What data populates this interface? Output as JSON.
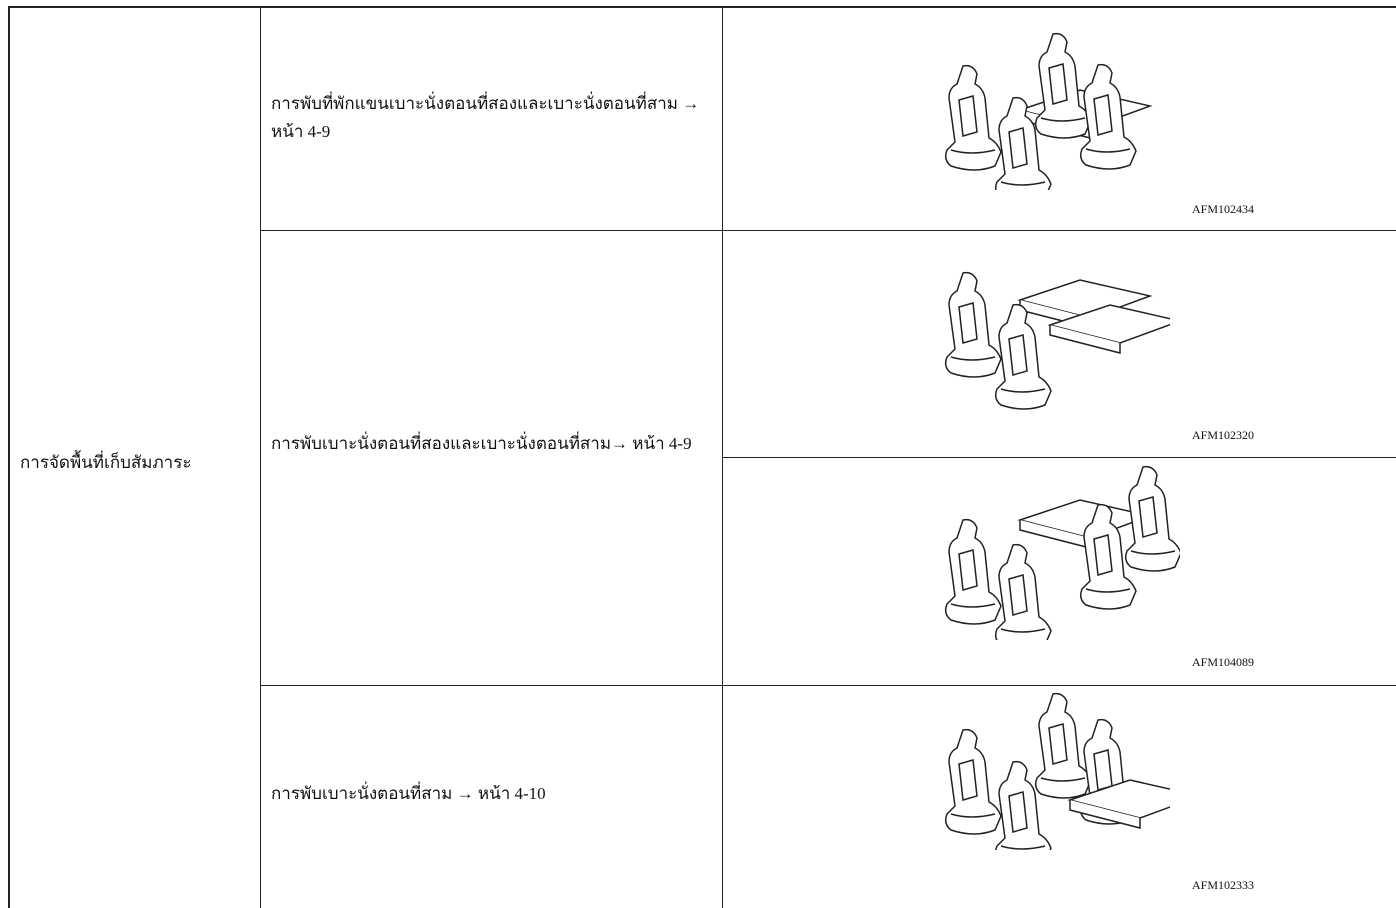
{
  "table": {
    "category": "การจัดพื้นที่เก็บสัมภาระ",
    "rows": [
      {
        "description": "การพับที่พักแขนเบาะนั่งตอนที่สองและเบาะนั่งตอนที่สาม → หน้า 4-9",
        "images": [
          "AFM102434"
        ]
      },
      {
        "description": "การพับเบาะนั่งตอนที่สองและเบาะนั่งตอนที่สาม→ หน้า 4-9",
        "images": [
          "AFM102320",
          "AFM104089"
        ]
      },
      {
        "description": "การพับเบาะนั่งตอนที่สาม → หน้า 4-10",
        "images": [
          "AFM102333"
        ]
      }
    ]
  }
}
